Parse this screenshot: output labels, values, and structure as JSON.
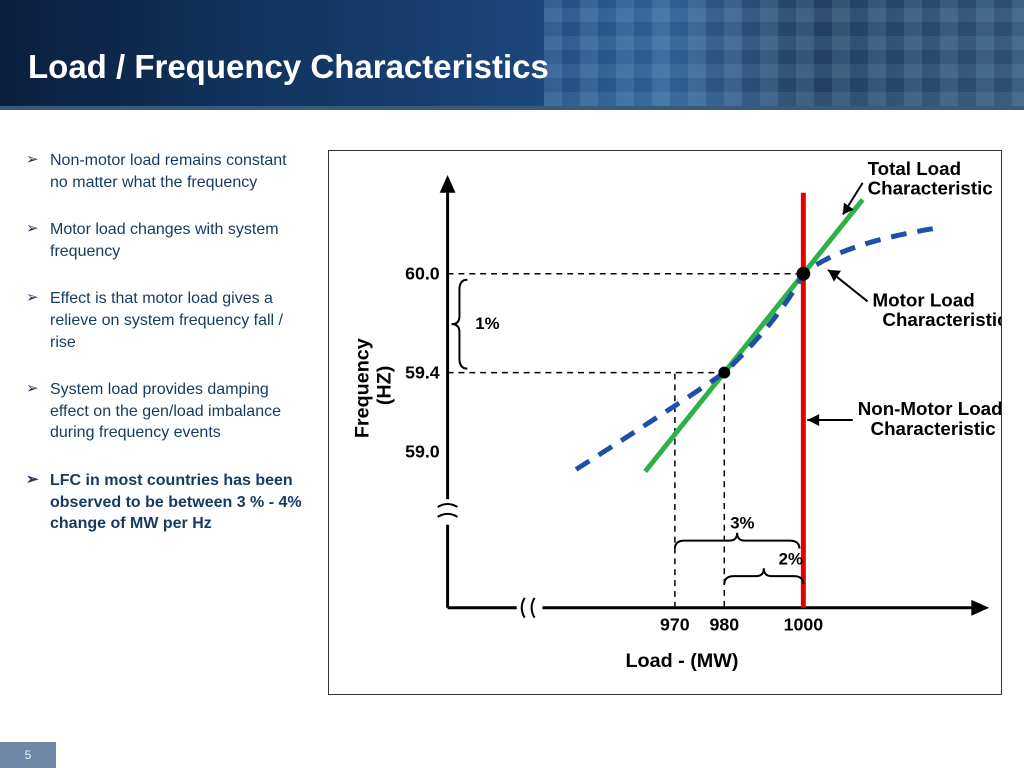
{
  "slide": {
    "title": "Load / Frequency Characteristics",
    "page_number": "5"
  },
  "bullets": [
    {
      "text": "Non-motor load remains constant no matter what the frequency",
      "bold": false
    },
    {
      "text": "Motor load changes with system frequency",
      "bold": false
    },
    {
      "text": "Effect is that motor load gives a relieve on system frequency fall / rise",
      "bold": false
    },
    {
      "text": "System load provides damping effect on the gen/load imbalance during frequency events",
      "bold": false
    },
    {
      "text": "LFC in most countries has been observed to be between 3 % - 4% change of MW per Hz",
      "bold": true
    }
  ],
  "chart": {
    "type": "line",
    "x_axis_label": "Load - (MW)",
    "y_axis_label_line1": "Frequency",
    "y_axis_label_line2": "(HZ)",
    "x_ticks": [
      "970",
      "980",
      "1000"
    ],
    "y_ticks": [
      "59.0",
      "59.4",
      "60.0"
    ],
    "annotations": {
      "total_load": "Total Load\nCharacteristic",
      "motor_load": "Motor Load\nCharacteristic",
      "non_motor_load": "Non-Motor Load\nCharacteristic"
    },
    "percent_labels": {
      "y_brace": "1%",
      "x_brace_outer": "3%",
      "x_brace_inner": "2%"
    },
    "colors": {
      "total_load_line": "#2fb14a",
      "motor_load_line": "#1f4fa8",
      "non_motor_load_line": "#e60000",
      "axis": "#000000",
      "point_fill": "#000000",
      "background": "#ffffff"
    },
    "line_widths": {
      "total": 5,
      "motor": 5,
      "non_motor": 5,
      "axis": 3
    },
    "motor_dash": "16 11",
    "points": [
      {
        "x_mw": 1000,
        "y_hz": 60.0
      },
      {
        "x_mw": 980,
        "y_hz": 59.4
      }
    ],
    "y_range_hz": [
      59.0,
      60.0
    ],
    "x_range_mw": [
      970,
      1000
    ]
  }
}
